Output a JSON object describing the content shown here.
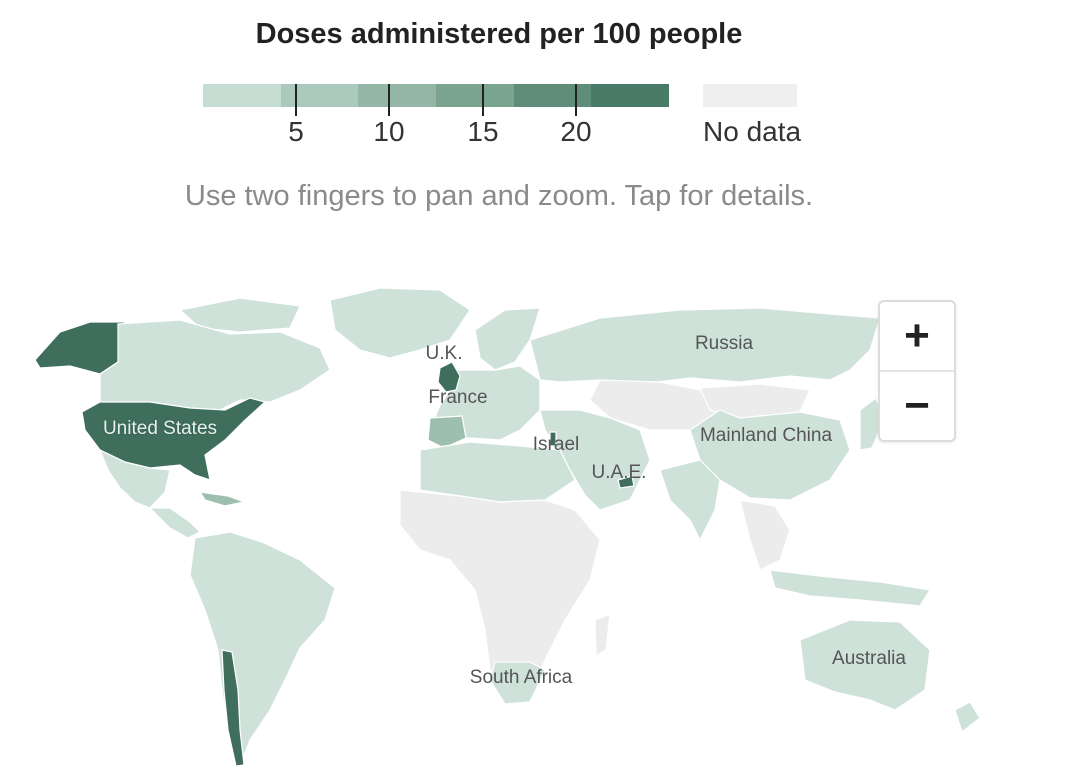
{
  "title": "Doses administered per 100 people",
  "legend": {
    "colors": [
      "#c5ddd3",
      "#acc9bd",
      "#93b6a7",
      "#7aa390",
      "#5f8d7a",
      "#4a7a68"
    ],
    "ticks": [
      "5",
      "10",
      "15",
      "20"
    ],
    "no_data_label": "No data",
    "no_data_color": "#efefef"
  },
  "hint": "Use two fingers to pan and zoom. Tap for details.",
  "map": {
    "labels": {
      "uk": "U.K.",
      "russia": "Russia",
      "france": "France",
      "united_states": "United States",
      "israel": "Israel",
      "mainland_china": "Mainland China",
      "uae": "U.A.E.",
      "australia": "Australia",
      "south_africa": "South Africa"
    },
    "colors": {
      "light": "#cfe2d9",
      "mid": "#9dbfb0",
      "dark": "#3f6e5d",
      "no_data": "#ececec"
    }
  },
  "zoom": {
    "in_icon": "+",
    "out_icon": "−"
  }
}
